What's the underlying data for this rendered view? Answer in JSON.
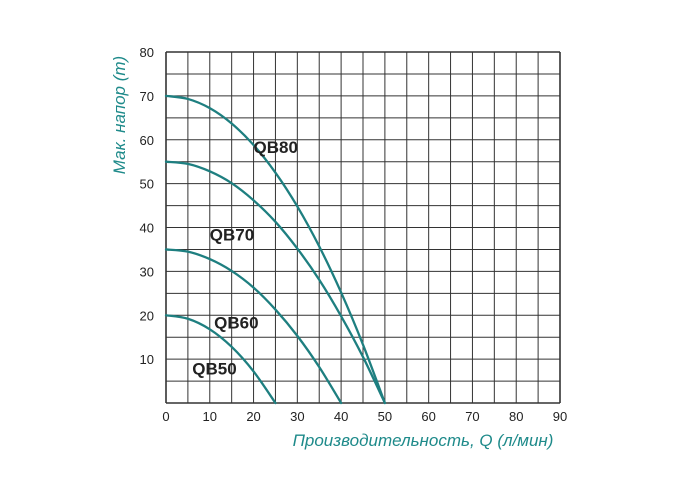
{
  "chart_data": {
    "type": "line",
    "title": "",
    "xlabel": "Производительность, Q (л/мин)",
    "ylabel": "Мак. напор (m)",
    "xlim": [
      0,
      90
    ],
    "ylim": [
      0,
      80
    ],
    "x_ticks": [
      "0",
      "10",
      "20",
      "30",
      "40",
      "50",
      "60",
      "70",
      "80",
      "90"
    ],
    "y_ticks": [
      "10",
      "20",
      "30",
      "40",
      "50",
      "60",
      "70",
      "80"
    ],
    "grid": true,
    "legend": "none",
    "colors": {
      "series": "#1e7f80",
      "axis_label": "#1e8a8a",
      "grid": "#333333"
    },
    "series": [
      {
        "name": "QB80",
        "x": [
          0,
          5,
          10,
          15,
          20,
          25,
          30,
          35,
          40,
          45,
          50
        ],
        "y": [
          70,
          69.3,
          67.2,
          63.7,
          58.8,
          52.5,
          44.8,
          35.7,
          25.2,
          13.3,
          0
        ]
      },
      {
        "name": "QB70",
        "x": [
          0,
          5,
          10,
          15,
          20,
          25,
          30,
          35,
          40,
          45,
          50
        ],
        "y": [
          55,
          54.5,
          52.8,
          50.1,
          46.2,
          41.3,
          35.2,
          28.1,
          19.8,
          10.5,
          0
        ]
      },
      {
        "name": "QB60",
        "x": [
          0,
          5,
          10,
          15,
          20,
          25,
          30,
          35,
          40
        ],
        "y": [
          35,
          34.5,
          32.8,
          30.1,
          26.3,
          21.3,
          15.3,
          8.2,
          0
        ]
      },
      {
        "name": "QB50",
        "x": [
          0,
          5,
          10,
          15,
          20,
          25
        ],
        "y": [
          20,
          19.2,
          16.8,
          12.8,
          7.2,
          0
        ]
      }
    ]
  }
}
